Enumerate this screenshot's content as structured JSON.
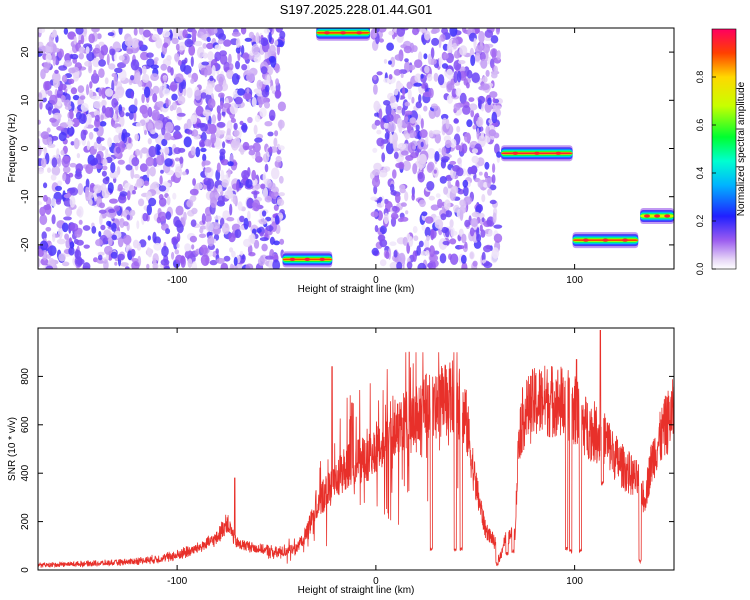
{
  "figure": {
    "title": "S197.2025.228.01.44.G01"
  },
  "chart_data": [
    {
      "type": "heatmap",
      "title": "S197.2025.228.01.44.G01",
      "xlabel": "Height of straight line (km)",
      "ylabel": "Frequency (Hz)",
      "xlim": [
        -170,
        150
      ],
      "ylim": [
        -25,
        25
      ],
      "x_ticks": [
        -100,
        0,
        100
      ],
      "x_tick_labels": [
        "-100",
        "0",
        "100"
      ],
      "y_ticks": [
        -20,
        -10,
        0,
        10,
        20
      ],
      "y_tick_labels": [
        "-20",
        "-10",
        "0",
        "10",
        "20"
      ],
      "colorbar": {
        "label": "Normalized spectral amplitude",
        "range": [
          0,
          1
        ],
        "ticks": [
          0.0,
          0.2,
          0.4,
          0.6,
          0.8
        ],
        "tick_labels": [
          "0.0",
          "0.2",
          "0.4",
          "0.6",
          "0.8"
        ],
        "colormap": "rainbow (white/purple low, red/magenta high)"
      },
      "noise_regions_km": [
        [
          -170,
          -47
        ],
        [
          -1,
          62
        ]
      ],
      "signal_tracks": [
        {
          "x": [
            -170,
            -47
          ],
          "freq_hz": null,
          "level": "noise"
        },
        {
          "x": [
            -47,
            -22
          ],
          "freq_hz": -23,
          "peak_amplitude": 0.9
        },
        {
          "x": [
            -30,
            -3
          ],
          "freq_hz": 24,
          "peak_amplitude": 0.9
        },
        {
          "x": [
            63,
            99
          ],
          "freq_hz": -1,
          "peak_amplitude": 0.95
        },
        {
          "x": [
            99,
            132
          ],
          "freq_hz": -19,
          "peak_amplitude": 0.9
        },
        {
          "x": [
            133,
            150
          ],
          "freq_hz": -14,
          "peak_amplitude": 0.7
        }
      ]
    },
    {
      "type": "line",
      "xlabel": "Height of straight line (km)",
      "ylabel": "SNR (10 * v/v)",
      "xlim": [
        -170,
        150
      ],
      "ylim": [
        0,
        1000
      ],
      "x_ticks": [
        -100,
        0,
        100
      ],
      "x_tick_labels": [
        "-100",
        "0",
        "100"
      ],
      "y_ticks": [
        0,
        200,
        400,
        600,
        800
      ],
      "y_tick_labels": [
        "0",
        "200",
        "400",
        "600",
        "800"
      ],
      "color": "#e8302a",
      "x": [
        -170,
        -150,
        -130,
        -110,
        -100,
        -90,
        -80,
        -75,
        -70,
        -60,
        -50,
        -40,
        -35,
        -30,
        -25,
        -20,
        -15,
        -10,
        -5,
        0,
        5,
        10,
        15,
        20,
        25,
        30,
        35,
        40,
        45,
        50,
        55,
        60,
        62,
        65,
        70,
        72,
        75,
        80,
        85,
        90,
        95,
        100,
        105,
        110,
        113,
        115,
        120,
        125,
        130,
        133,
        135,
        138,
        140,
        145,
        150
      ],
      "values": [
        20,
        25,
        30,
        45,
        60,
        90,
        130,
        200,
        110,
        90,
        70,
        90,
        150,
        270,
        320,
        380,
        420,
        470,
        440,
        500,
        570,
        600,
        610,
        620,
        680,
        690,
        700,
        710,
        640,
        360,
        170,
        110,
        40,
        130,
        150,
        570,
        650,
        690,
        700,
        700,
        690,
        660,
        600,
        570,
        560,
        550,
        470,
        420,
        380,
        360,
        280,
        420,
        480,
        580,
        660
      ],
      "dropouts": [
        {
          "x": 28,
          "min": 80
        },
        {
          "x": 40,
          "min": 80
        },
        {
          "x": 43,
          "min": 80
        },
        {
          "x": 61,
          "min": 20
        },
        {
          "x": 66,
          "min": 60
        },
        {
          "x": 69,
          "min": 70
        },
        {
          "x": 96,
          "min": 80
        },
        {
          "x": 98,
          "min": 70
        },
        {
          "x": 103,
          "min": 70
        },
        {
          "x": 114,
          "min": 350
        },
        {
          "x": 133,
          "min": 30
        }
      ],
      "spikes": [
        {
          "x": -71,
          "max": 380
        },
        {
          "x": -22,
          "max": 840
        },
        {
          "x": -12,
          "max": 690
        },
        {
          "x": 113,
          "max": 990
        },
        {
          "x": 101,
          "max": 870
        }
      ]
    }
  ]
}
